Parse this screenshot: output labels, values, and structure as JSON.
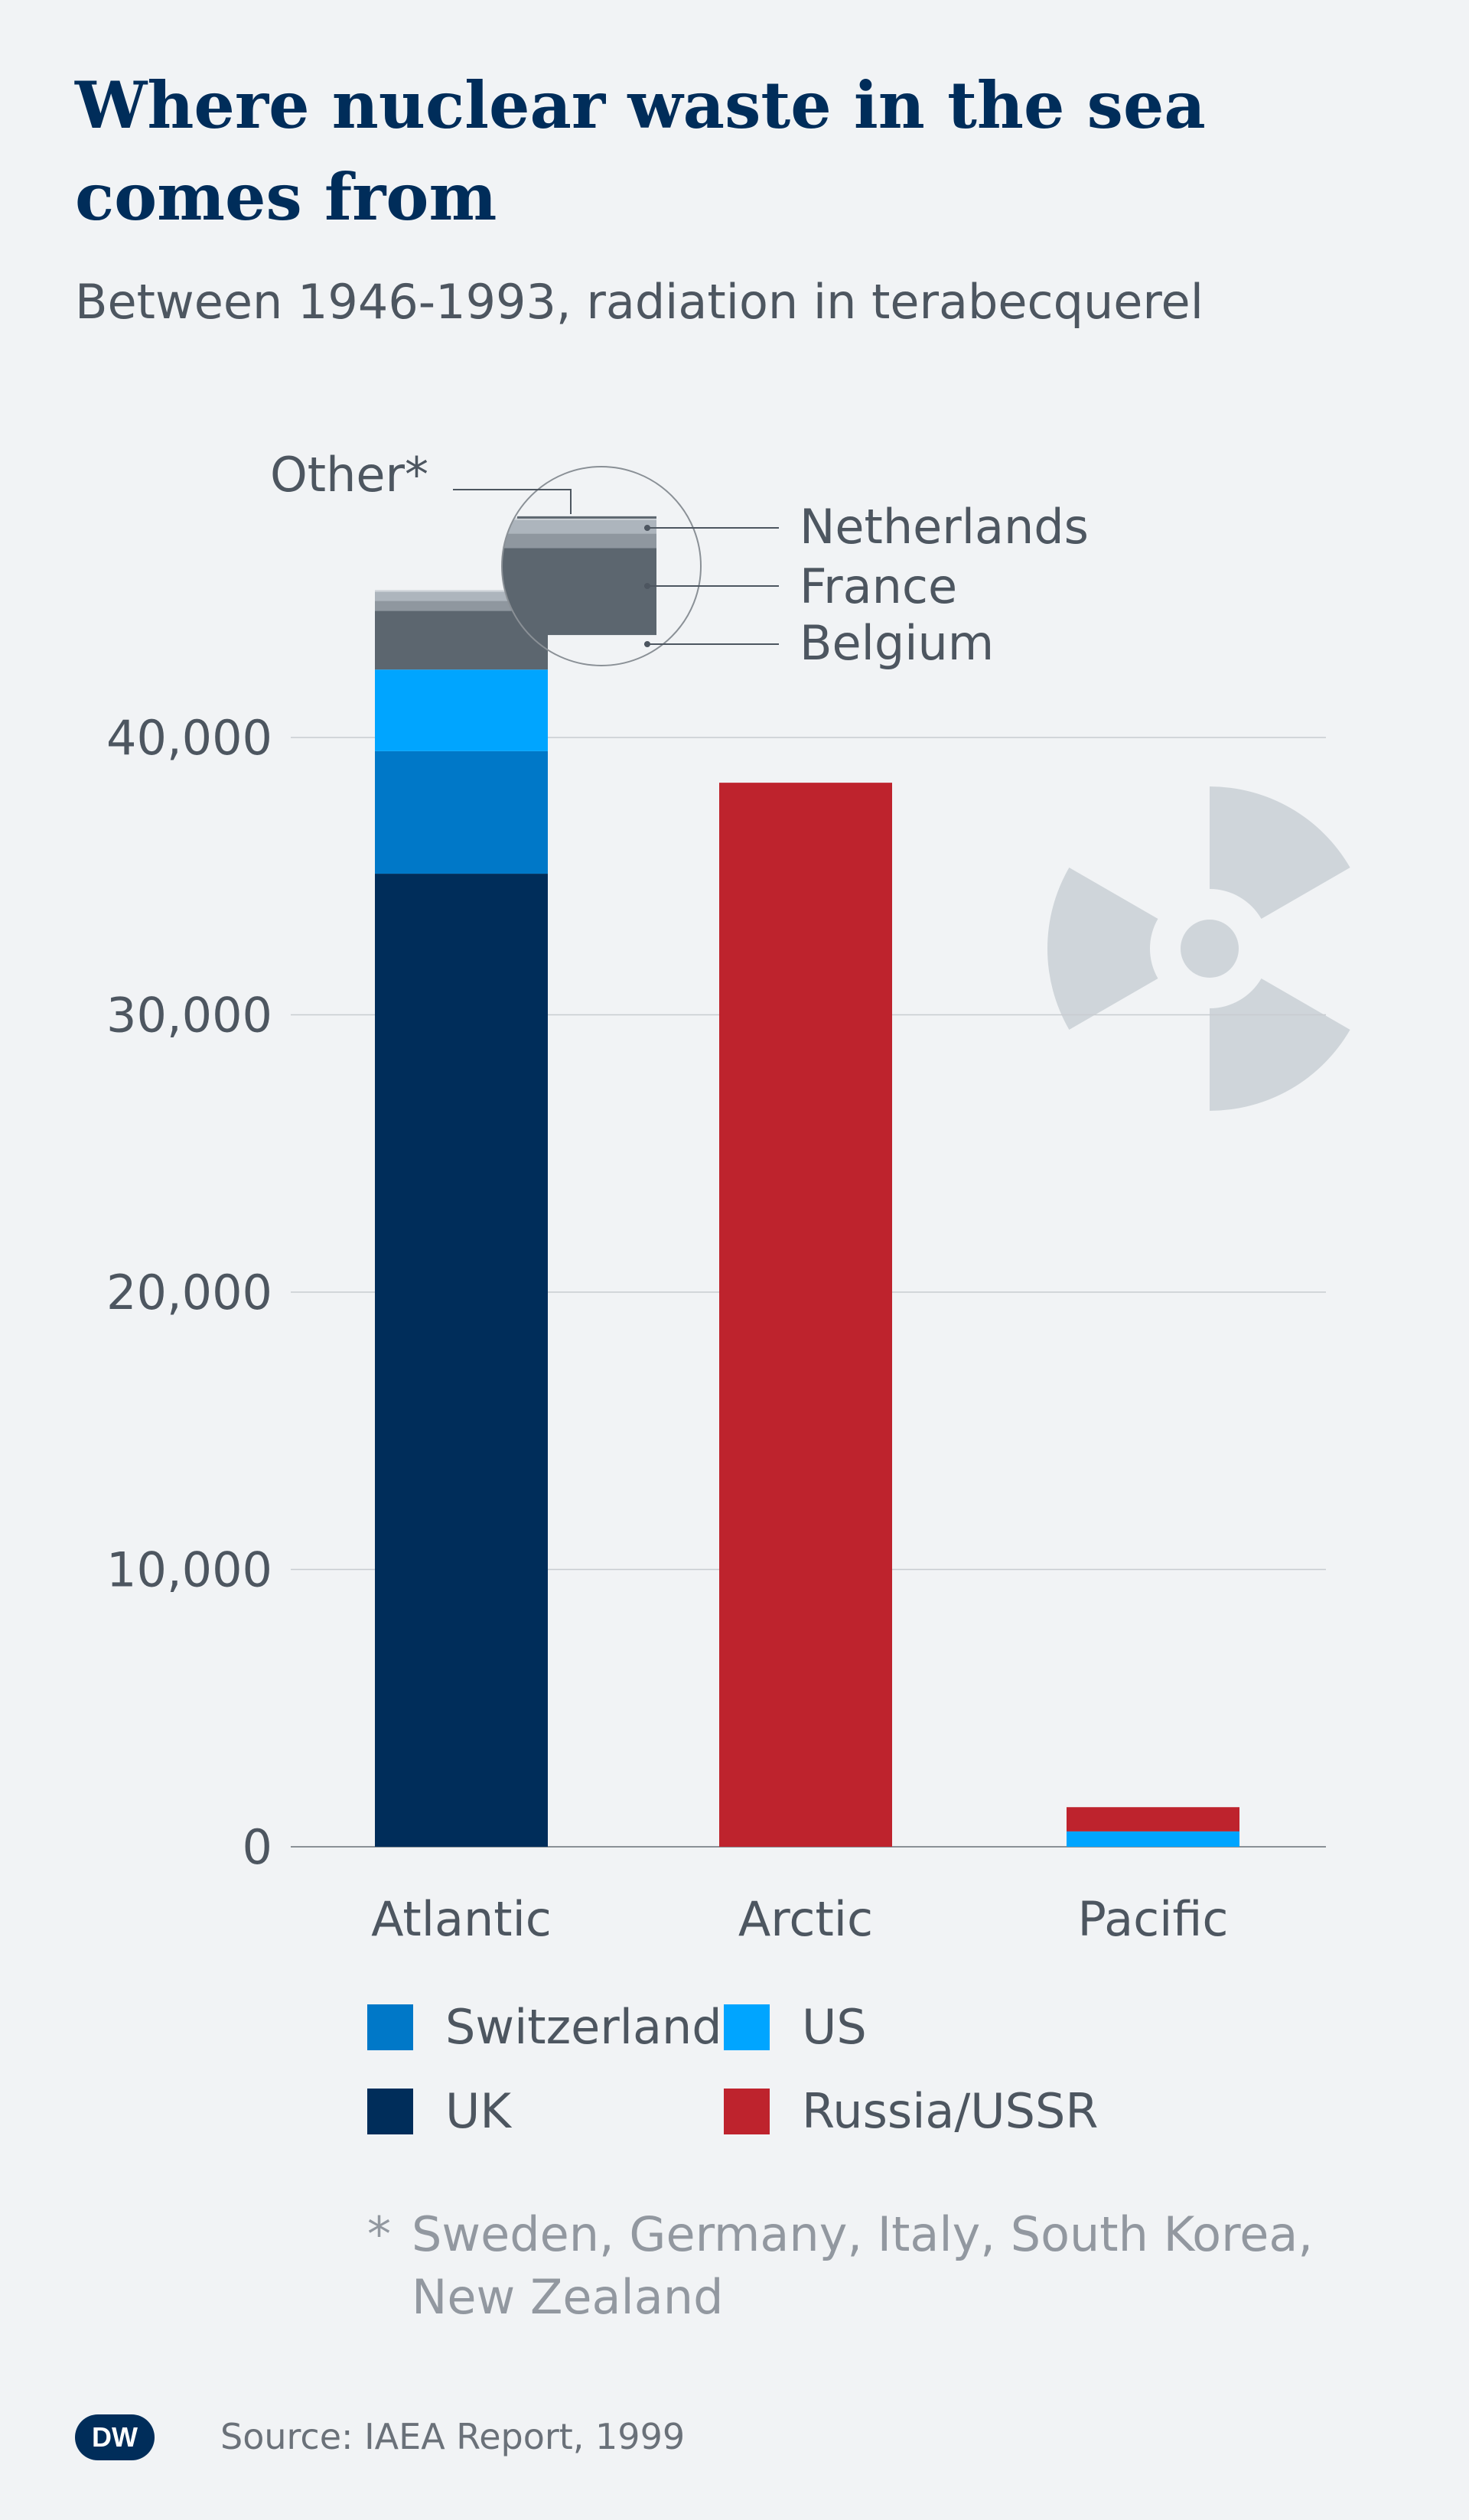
{
  "title": "Where nuclear waste in the sea comes from",
  "subtitle": "Between 1946-1993, radiation in terabecquerel",
  "chart_data": {
    "type": "bar",
    "stacked": true,
    "categories": [
      "Atlantic",
      "Arctic",
      "Pacific"
    ],
    "ylim": [
      0,
      45000
    ],
    "yticks": [
      0,
      10000,
      20000,
      30000,
      40000
    ],
    "ytick_labels": [
      "0",
      "10,000",
      "20,000",
      "30,000",
      "40,000"
    ],
    "grid": true,
    "series": [
      {
        "name": "UK",
        "color": "#002d5a",
        "values": [
          35088,
          0,
          0
        ]
      },
      {
        "name": "Switzerland",
        "color": "#0078c8",
        "values": [
          4419,
          0,
          0
        ]
      },
      {
        "name": "US",
        "color": "#00a5ff",
        "values": [
          2942,
          0,
          554
        ]
      },
      {
        "name": "Russia/USSR",
        "color": "#be232d",
        "values": [
          0,
          38369,
          874
        ]
      },
      {
        "name": "Belgium",
        "color": "#5c666f",
        "values": [
          2120,
          0,
          0
        ]
      },
      {
        "name": "France",
        "color": "#8f979f",
        "values": [
          354,
          0,
          0
        ]
      },
      {
        "name": "Netherlands",
        "color": "#adb5bd",
        "values": [
          336,
          0,
          0
        ]
      },
      {
        "name": "Other*",
        "color": "#d2d7dc",
        "values": [
          60,
          0,
          0
        ]
      }
    ],
    "callouts": [
      "Other*",
      "Netherlands",
      "France",
      "Belgium"
    ],
    "legend": [
      "Switzerland",
      "US",
      "UK",
      "Russia/USSR"
    ],
    "legend_position": "bottom"
  },
  "footnote": {
    "star": "*",
    "text": "Sweden, Germany, Italy, South Korea, New Zealand"
  },
  "logo_text": "DW",
  "source": "Source: IAEA Report, 1999",
  "colors": {
    "background": "#f1f3f5",
    "title": "#002d5a",
    "text": "#4d5660",
    "grid": "#c8ccd0",
    "radiation_symbol": "#cfd5da"
  }
}
